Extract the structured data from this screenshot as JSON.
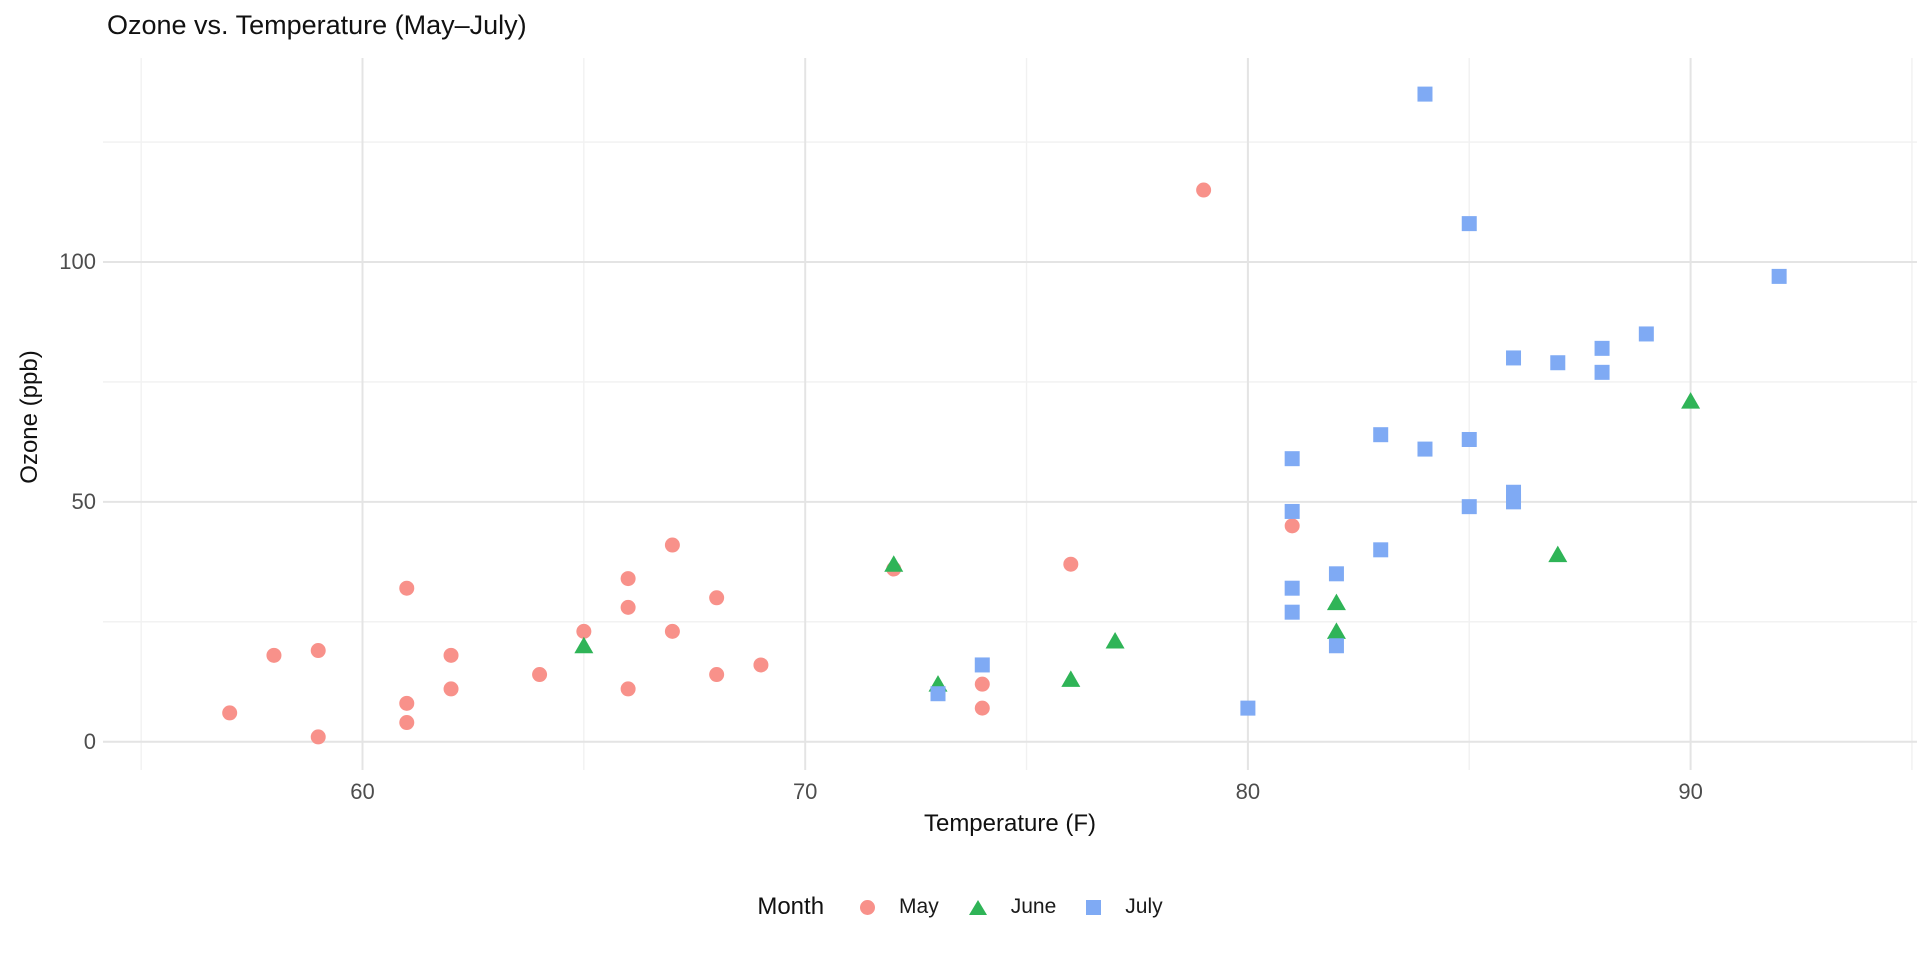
{
  "chart_data": {
    "type": "scatter",
    "title": "Ozone vs. Temperature (May–July)",
    "xlabel": "Temperature (F)",
    "ylabel": "Ozone (ppb)",
    "legend_title": "Month",
    "legend_position": "bottom",
    "grid": "major and minor, light gray on white (theme_minimal)",
    "xlim": [
      54.5,
      95.5
    ],
    "ylim": [
      -6,
      142
    ],
    "x_major_ticks": [
      60,
      70,
      80,
      90
    ],
    "x_minor_ticks": [
      55,
      65,
      75,
      85,
      95
    ],
    "y_major_ticks": [
      0,
      50,
      100
    ],
    "y_minor_ticks": [
      25,
      75,
      125
    ],
    "series": [
      {
        "name": "May",
        "shape": "circle",
        "color": "#F8918A",
        "points": [
          [
            57,
            6
          ],
          [
            58,
            18
          ],
          [
            59,
            1
          ],
          [
            59,
            19
          ],
          [
            61,
            4
          ],
          [
            61,
            8
          ],
          [
            61,
            32
          ],
          [
            62,
            11
          ],
          [
            62,
            18
          ],
          [
            64,
            14
          ],
          [
            65,
            23
          ],
          [
            66,
            11
          ],
          [
            66,
            28
          ],
          [
            66,
            34
          ],
          [
            67,
            23
          ],
          [
            67,
            41
          ],
          [
            68,
            14
          ],
          [
            68,
            30
          ],
          [
            69,
            16
          ],
          [
            72,
            36
          ],
          [
            74,
            7
          ],
          [
            74,
            12
          ],
          [
            76,
            37
          ],
          [
            79,
            115
          ],
          [
            81,
            45
          ]
        ]
      },
      {
        "name": "June",
        "shape": "triangle",
        "color": "#2FB457",
        "points": [
          [
            65,
            20
          ],
          [
            72,
            37
          ],
          [
            73,
            12
          ],
          [
            76,
            13
          ],
          [
            77,
            21
          ],
          [
            82,
            23
          ],
          [
            82,
            29
          ],
          [
            87,
            39
          ],
          [
            90,
            71
          ]
        ]
      },
      {
        "name": "July",
        "shape": "square",
        "color": "#7FAAF4",
        "points": [
          [
            73,
            10
          ],
          [
            74,
            16
          ],
          [
            80,
            7
          ],
          [
            81,
            27
          ],
          [
            81,
            32
          ],
          [
            81,
            48
          ],
          [
            81,
            59
          ],
          [
            82,
            20
          ],
          [
            82,
            35
          ],
          [
            83,
            40
          ],
          [
            83,
            64
          ],
          [
            84,
            61
          ],
          [
            84,
            135
          ],
          [
            85,
            49
          ],
          [
            85,
            63
          ],
          [
            85,
            108
          ],
          [
            86,
            50
          ],
          [
            86,
            52
          ],
          [
            86,
            80
          ],
          [
            87,
            79
          ],
          [
            88,
            77
          ],
          [
            88,
            82
          ],
          [
            89,
            85
          ],
          [
            92,
            97
          ]
        ]
      }
    ],
    "colors": {
      "grid_major": "#e4e4e4",
      "grid_minor": "#f1f1f1",
      "tick_label": "#4d4d4d",
      "title_text": "#111111"
    }
  }
}
